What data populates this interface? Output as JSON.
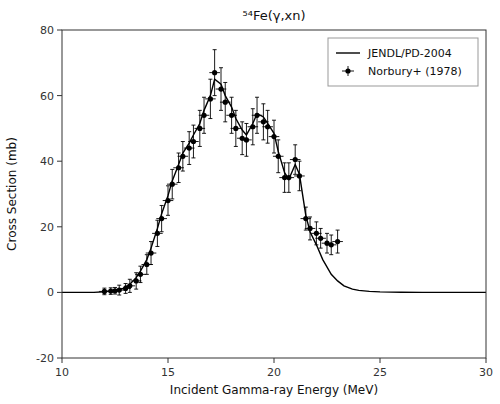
{
  "chart_data": {
    "type": "line",
    "title": "⁵⁴Fe(γ,xn)",
    "xlabel": "Incident Gamma-ray Energy (MeV)",
    "ylabel": "Cross Section (mb)",
    "xlim": [
      10,
      30
    ],
    "ylim": [
      -20,
      80
    ],
    "xticks": [
      10,
      15,
      20,
      25,
      30
    ],
    "yticks": [
      -20,
      0,
      20,
      40,
      60,
      80
    ],
    "grid": false,
    "legend": "upper right",
    "series": [
      {
        "name": "JENDL/PD-2004",
        "type": "line",
        "color": "black",
        "line_style": "solid",
        "x": [
          10.0,
          11.0,
          11.5,
          12.0,
          12.3,
          12.5,
          12.8,
          13.0,
          13.2,
          13.5,
          13.7,
          14.0,
          14.2,
          14.5,
          14.7,
          15.0,
          15.2,
          15.5,
          15.7,
          16.0,
          16.2,
          16.5,
          16.7,
          17.0,
          17.2,
          17.5,
          17.7,
          18.0,
          18.2,
          18.5,
          18.7,
          19.0,
          19.2,
          19.5,
          19.7,
          20.0,
          20.2,
          20.5,
          20.7,
          21.0,
          21.2,
          21.5,
          21.7,
          22.0,
          22.3,
          22.7,
          23.0,
          23.3,
          23.7,
          24.0,
          24.5,
          25.0,
          25.5,
          26.0,
          27.0,
          28.0,
          29.0,
          30.0
        ],
        "values": [
          0.0,
          0.0,
          0.0,
          0.2,
          0.4,
          0.6,
          1.0,
          1.5,
          2.5,
          4.5,
          6.5,
          10.0,
          13.5,
          19.5,
          24.0,
          29.5,
          34.0,
          39.0,
          42.5,
          45.5,
          48.0,
          51.5,
          55.5,
          60.0,
          65.0,
          63.5,
          60.0,
          56.5,
          53.0,
          49.5,
          48.0,
          51.5,
          54.5,
          53.5,
          51.5,
          48.5,
          43.0,
          36.5,
          34.5,
          39.0,
          36.0,
          23.5,
          18.5,
          14.5,
          10.0,
          5.5,
          3.5,
          2.0,
          1.0,
          0.6,
          0.3,
          0.15,
          0.08,
          0.04,
          0.01,
          0.005,
          0.002,
          0.001
        ]
      },
      {
        "name": "Norbury+ (1978)",
        "type": "scatter",
        "color": "black",
        "marker": "circle",
        "x": [
          12.0,
          12.3,
          12.5,
          12.7,
          13.0,
          13.2,
          13.5,
          13.7,
          14.0,
          14.2,
          14.5,
          14.7,
          15.0,
          15.2,
          15.5,
          15.7,
          16.0,
          16.2,
          16.5,
          16.7,
          17.0,
          17.2,
          17.5,
          17.7,
          18.0,
          18.2,
          18.5,
          18.7,
          19.0,
          19.2,
          19.5,
          19.7,
          20.0,
          20.2,
          20.5,
          20.7,
          21.0,
          21.2,
          21.5,
          21.7,
          22.0,
          22.2,
          22.5,
          22.7,
          23.0
        ],
        "values": [
          0.3,
          0.4,
          0.5,
          0.7,
          1.2,
          2.0,
          3.5,
          5.5,
          8.5,
          12.0,
          18.0,
          22.5,
          28.0,
          33.0,
          38.0,
          41.5,
          44.0,
          46.0,
          50.0,
          54.0,
          59.0,
          67.0,
          62.0,
          58.0,
          54.0,
          50.0,
          47.0,
          46.5,
          50.5,
          54.0,
          52.0,
          50.5,
          47.5,
          41.5,
          35.0,
          35.0,
          40.5,
          35.5,
          22.5,
          19.5,
          18.0,
          16.5,
          15.0,
          14.5,
          15.5
        ],
        "yerr": [
          1.0,
          1.0,
          1.0,
          1.5,
          1.5,
          2.0,
          2.5,
          2.5,
          3.0,
          3.5,
          4.0,
          4.0,
          4.5,
          4.5,
          4.5,
          4.5,
          5.0,
          5.0,
          5.5,
          5.5,
          6.0,
          7.0,
          6.5,
          6.0,
          5.5,
          5.5,
          5.0,
          5.0,
          5.5,
          5.5,
          5.5,
          5.0,
          5.0,
          5.0,
          4.5,
          4.5,
          4.5,
          4.5,
          3.5,
          3.5,
          3.5,
          3.0,
          3.0,
          3.0,
          3.5
        ],
        "xerr": 0.25
      }
    ]
  }
}
